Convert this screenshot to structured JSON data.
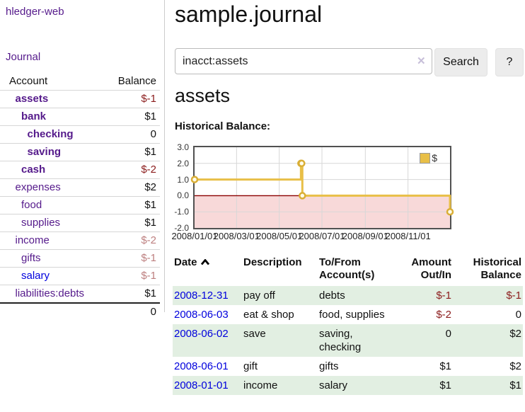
{
  "sidebar": {
    "brand": "hledger-web",
    "nav_journal": "Journal",
    "accounts": {
      "headers": {
        "account": "Account",
        "balance": "Balance"
      },
      "rows": [
        {
          "name": "assets",
          "depth": 1,
          "balance": "$-1",
          "in_query": true,
          "tone": "neg"
        },
        {
          "name": "bank",
          "depth": 2,
          "balance": "$1",
          "in_query": true,
          "tone": "pos"
        },
        {
          "name": "checking",
          "depth": 3,
          "balance": "0",
          "in_query": true,
          "tone": "pos"
        },
        {
          "name": "saving",
          "depth": 3,
          "balance": "$1",
          "in_query": true,
          "tone": "pos"
        },
        {
          "name": "cash",
          "depth": 2,
          "balance": "$-2",
          "in_query": true,
          "tone": "neg"
        },
        {
          "name": "expenses",
          "depth": 1,
          "balance": "$2",
          "in_query": false,
          "tone": "pos"
        },
        {
          "name": "food",
          "depth": 2,
          "balance": "$1",
          "in_query": false,
          "tone": "pos"
        },
        {
          "name": "supplies",
          "depth": 2,
          "balance": "$1",
          "in_query": false,
          "tone": "pos"
        },
        {
          "name": "income",
          "depth": 1,
          "balance": "$-2",
          "in_query": false,
          "tone": "neg-faint"
        },
        {
          "name": "gifts",
          "depth": 2,
          "balance": "$-1",
          "in_query": false,
          "tone": "neg-faint"
        },
        {
          "name": "salary",
          "depth": 2,
          "balance": "$-1",
          "in_query": false,
          "tone": "neg-faint",
          "unvisited": true
        },
        {
          "name": "liabilities:debts",
          "depth": 1,
          "balance": "$1",
          "in_query": false,
          "tone": "pos"
        }
      ],
      "total": "0"
    }
  },
  "header": {
    "title": "sample.journal"
  },
  "search": {
    "value": "inacct:assets",
    "clear_icon": "✕",
    "button": "Search",
    "help": "?"
  },
  "account_page": {
    "title": "assets"
  },
  "chart_data": {
    "type": "line",
    "title": "Historical Balance:",
    "step": true,
    "x_range": [
      "2008-01-01",
      "2008-12-31"
    ],
    "ylim": [
      -2,
      3
    ],
    "series": [
      {
        "name": "$",
        "color": "#e8bf47",
        "points": [
          [
            "2008-01-01",
            1
          ],
          [
            "2008-06-01",
            2
          ],
          [
            "2008-06-02",
            2
          ],
          [
            "2008-06-03",
            0
          ],
          [
            "2008-12-31",
            -1
          ]
        ]
      }
    ],
    "y_ticks": [
      {
        "v": 3,
        "label": "3.0"
      },
      {
        "v": 2,
        "label": "2.0"
      },
      {
        "v": 1,
        "label": "1.0"
      },
      {
        "v": 0,
        "label": "0.0"
      },
      {
        "v": -1,
        "label": "-1.0"
      },
      {
        "v": -2,
        "label": "-2.0"
      }
    ],
    "x_ticks": [
      {
        "date": "2008-01-01",
        "label": "2008/01/01"
      },
      {
        "date": "2008-03-01",
        "label": "2008/03/01"
      },
      {
        "date": "2008-05-01",
        "label": "2008/05/01"
      },
      {
        "date": "2008-07-01",
        "label": "2008/07/01"
      },
      {
        "date": "2008-09-01",
        "label": "2008/09/01"
      },
      {
        "date": "2008-11-01",
        "label": "2008/11/01"
      }
    ],
    "grid": true,
    "legend": {
      "label": "$",
      "position": "top-right"
    },
    "colors": {
      "line": "#e8bf47",
      "marker_fill": "#fffbe8",
      "marker_stroke": "#d9ae35",
      "negative_region": "#f8d9d9",
      "zero_line": "#8b0000",
      "grid": "#d7d7d7",
      "border": "#515151"
    }
  },
  "register": {
    "headers": {
      "date": "Date",
      "description": "Description",
      "tofrom": "To/From Account(s)",
      "amount": "Amount Out/In",
      "balance": "Historical Balance"
    },
    "sort": {
      "column": "date",
      "direction": "ascending"
    },
    "rows": [
      {
        "date": "2008-12-31",
        "description": "pay off",
        "accounts": "debts",
        "amount": "$-1",
        "amount_negative": true,
        "balance": "$-1",
        "balance_negative": true
      },
      {
        "date": "2008-06-03",
        "description": "eat & shop",
        "accounts": "food, supplies",
        "amount": "$-2",
        "amount_negative": true,
        "balance": "0",
        "balance_negative": false
      },
      {
        "date": "2008-06-02",
        "description": "save",
        "accounts": "saving, checking",
        "amount": "0",
        "amount_negative": false,
        "balance": "$2",
        "balance_negative": false
      },
      {
        "date": "2008-06-01",
        "description": "gift",
        "accounts": "gifts",
        "amount": "$1",
        "amount_negative": false,
        "balance": "$2",
        "balance_negative": false
      },
      {
        "date": "2008-01-01",
        "description": "income",
        "accounts": "salary",
        "amount": "$1",
        "amount_negative": false,
        "balance": "$1",
        "balance_negative": false
      }
    ]
  }
}
